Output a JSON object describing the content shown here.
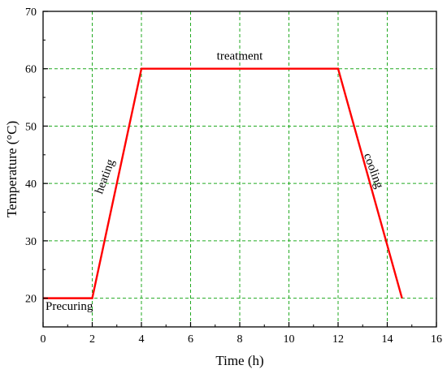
{
  "chart_data": {
    "type": "line",
    "title": "",
    "xlabel": "Time (h)",
    "ylabel": "Temperature (°C)",
    "xlim": [
      0,
      16
    ],
    "ylim": [
      15,
      70
    ],
    "xticks": [
      0,
      2,
      4,
      6,
      8,
      10,
      12,
      14,
      16
    ],
    "yticks": [
      20,
      30,
      40,
      50,
      60,
      70
    ],
    "grid": true,
    "series": [
      {
        "color": "#ff0000",
        "x": [
          0,
          2,
          4,
          12,
          14.6
        ],
        "y": [
          20,
          20,
          60,
          60,
          20
        ]
      }
    ],
    "annotations": [
      {
        "text": "Precuring",
        "x": 0.1,
        "y": 18
      },
      {
        "text": "heating",
        "x": 2.65,
        "y": 41,
        "rotation": -70
      },
      {
        "text": "treatment",
        "x": 8,
        "y": 61.6
      },
      {
        "text": "cooling",
        "x": 13.3,
        "y": 42,
        "rotation": 70
      }
    ],
    "colors": {
      "grid": "#22aa22",
      "line": "#ff0000",
      "axes": "#000000"
    }
  }
}
